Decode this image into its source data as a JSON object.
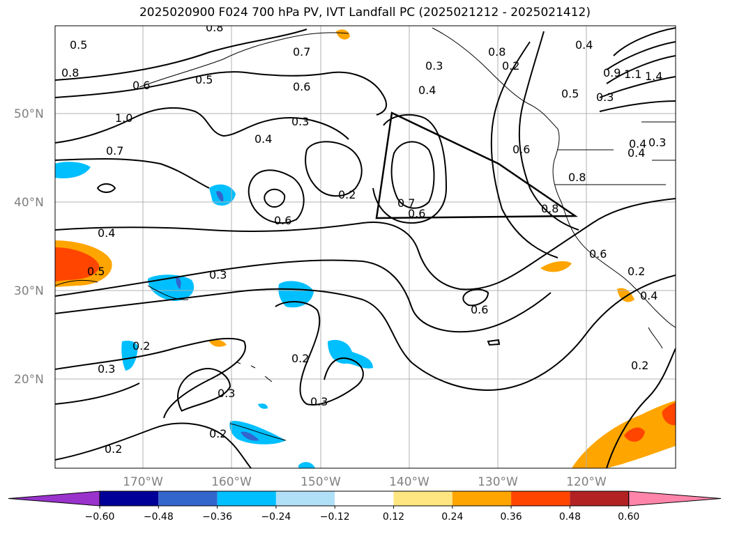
{
  "title": "2025020900 F024 700 hPa PV, IVT Landfall PC (2025021212 - 2025021412)",
  "lat_labels": [
    "50°N",
    "40°N",
    "30°N",
    "20°N"
  ],
  "lon_labels": [
    "170°W",
    "160°W",
    "150°W",
    "140°W",
    "130°W",
    "120°W"
  ],
  "colorbar": {
    "ticks": [
      "−0.60",
      "−0.48",
      "−0.36",
      "−0.24",
      "−0.12",
      "0.12",
      "0.24",
      "0.36",
      "0.48",
      "0.60"
    ],
    "colors": [
      "#9933cc",
      "#000099",
      "#3366cc",
      "#00bfff",
      "#b0e0f8",
      "#ffffff",
      "#ffe680",
      "#ffa500",
      "#ff4500",
      "#b22222",
      "#ff85aa"
    ]
  },
  "contour_labels": [
    "0.5",
    "0.8",
    "0.6",
    "0.5",
    "0.7",
    "0.6",
    "0.3",
    "0.4",
    "0.3",
    "0.4",
    "0.6",
    "0.7",
    "0.6",
    "0.2",
    "0.4",
    "0.3",
    "0.2",
    "0.8",
    "0.3",
    "0.5",
    "0.8",
    "0.6",
    "0.8",
    "0.4",
    "1.0",
    "0.7",
    "0.4",
    "0.5",
    "0.3",
    "0.6",
    "0.2",
    "0.2",
    "0.3",
    "0.3",
    "0.2",
    "0.3",
    "0.2",
    "0.2",
    "0.6",
    "0.4",
    "0.2",
    "0.4",
    "1.4",
    "1.1",
    "0.9",
    "0.8"
  ]
}
